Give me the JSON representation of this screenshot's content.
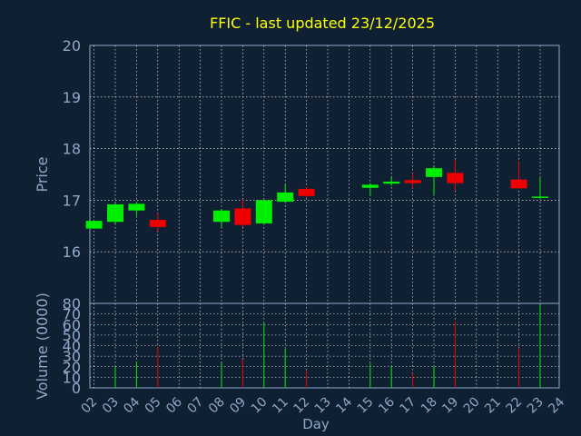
{
  "chart_data": {
    "type": "candlestick",
    "title": "FFIC - last updated 23/12/2025",
    "xlabel": "Day",
    "colors": {
      "background": "#0f2033",
      "text": "#8fa8c8",
      "title": "#ffff00",
      "grid": "#ffffff",
      "up": "#00ee00",
      "down": "#ee0000"
    },
    "x_ticks": [
      "02",
      "03",
      "04",
      "05",
      "06",
      "07",
      "08",
      "09",
      "10",
      "11",
      "12",
      "13",
      "14",
      "15",
      "16",
      "17",
      "18",
      "19",
      "20",
      "21",
      "22",
      "23",
      "24"
    ],
    "price_panel": {
      "ylabel": "Price",
      "ylim": [
        15.0,
        20.0
      ],
      "yticks": [
        16,
        17,
        18,
        19,
        20
      ]
    },
    "volume_panel": {
      "ylabel": "Volume (0000)",
      "ylim": [
        0,
        80
      ],
      "yticks": [
        0,
        10,
        20,
        30,
        40,
        50,
        60,
        70,
        80
      ]
    },
    "candles": [
      {
        "day": 2,
        "open": 16.45,
        "high": 16.62,
        "low": 16.45,
        "close": 16.6,
        "volume": 0
      },
      {
        "day": 3,
        "open": 16.58,
        "high": 16.95,
        "low": 16.55,
        "close": 16.92,
        "volume": 20
      },
      {
        "day": 4,
        "open": 16.8,
        "high": 16.97,
        "low": 16.7,
        "close": 16.93,
        "volume": 25
      },
      {
        "day": 5,
        "open": 16.62,
        "high": 16.75,
        "low": 16.4,
        "close": 16.48,
        "volume": 39
      },
      {
        "day": 8,
        "open": 16.58,
        "high": 16.82,
        "low": 16.48,
        "close": 16.8,
        "volume": 24
      },
      {
        "day": 9,
        "open": 16.84,
        "high": 17.02,
        "low": 16.48,
        "close": 16.52,
        "volume": 27
      },
      {
        "day": 10,
        "open": 16.55,
        "high": 17.0,
        "low": 16.52,
        "close": 17.0,
        "volume": 62
      },
      {
        "day": 11,
        "open": 16.97,
        "high": 17.3,
        "low": 16.97,
        "close": 17.15,
        "volume": 37
      },
      {
        "day": 12,
        "open": 17.22,
        "high": 17.26,
        "low": 17.05,
        "close": 17.08,
        "volume": 16
      },
      {
        "day": 15,
        "open": 17.24,
        "high": 17.33,
        "low": 17.08,
        "close": 17.3,
        "volume": 23
      },
      {
        "day": 16,
        "open": 17.32,
        "high": 17.44,
        "low": 17.28,
        "close": 17.36,
        "volume": 21
      },
      {
        "day": 17,
        "open": 17.39,
        "high": 17.52,
        "low": 17.24,
        "close": 17.33,
        "volume": 14
      },
      {
        "day": 18,
        "open": 17.45,
        "high": 17.65,
        "low": 17.1,
        "close": 17.62,
        "volume": 20
      },
      {
        "day": 19,
        "open": 17.53,
        "high": 17.78,
        "low": 17.18,
        "close": 17.33,
        "volume": 63
      },
      {
        "day": 22,
        "open": 17.4,
        "high": 17.76,
        "low": 17.22,
        "close": 17.23,
        "volume": 38
      },
      {
        "day": 23,
        "open": 17.05,
        "high": 17.43,
        "low": 17.02,
        "close": 17.07,
        "volume": 79
      }
    ]
  }
}
